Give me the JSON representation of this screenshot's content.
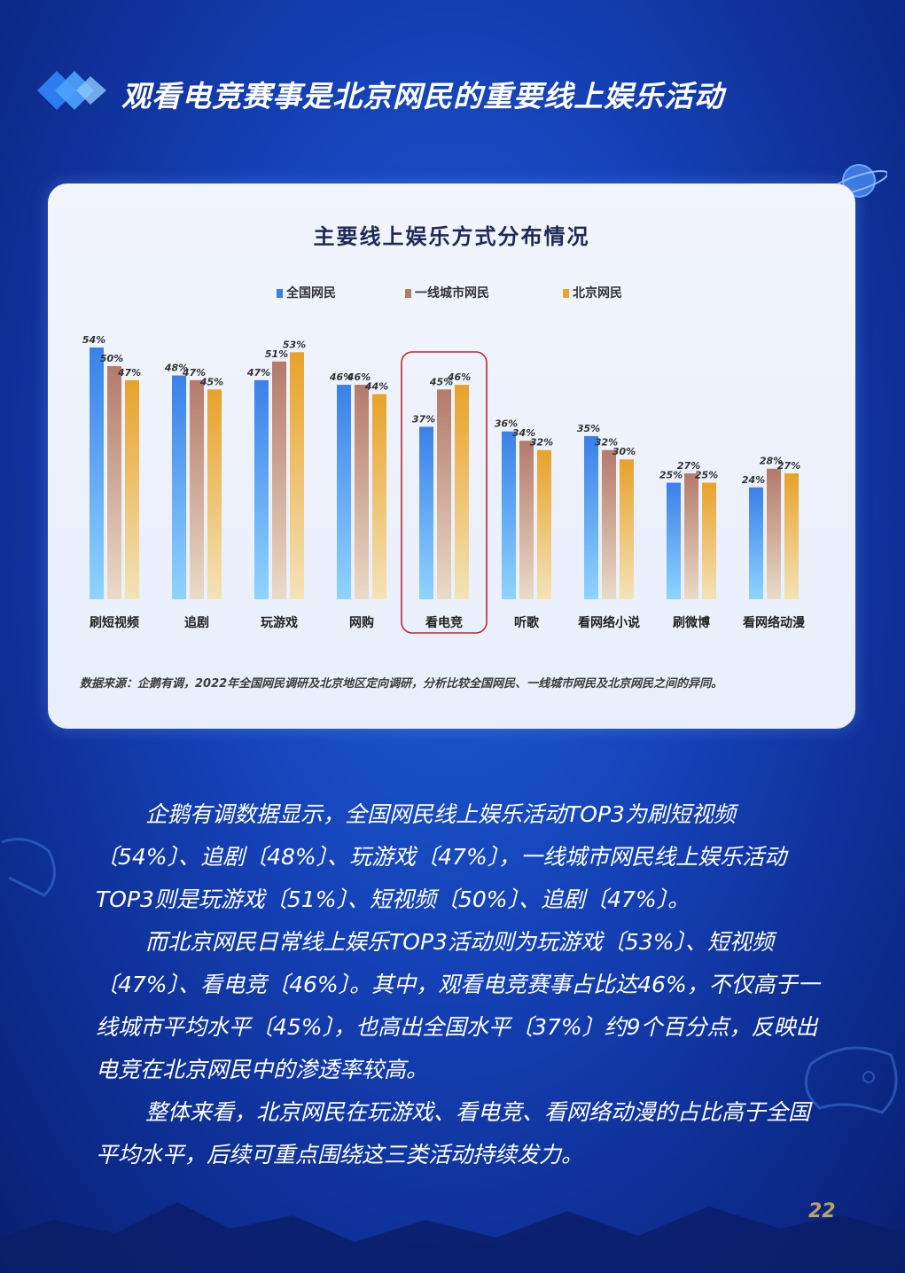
{
  "header": {
    "title": "观看电竞赛事是北京网民的重要线上娱乐活动",
    "logo_icon": "diamond-logo-icon"
  },
  "chart_card": {
    "source_note": "数据来源：企鹅有调，2022年全国网民调研及北京地区定向调研，分析比较全国网民、一线城市网民及北京网民之间的异同。"
  },
  "chart_data": {
    "type": "bar",
    "title": "主要线上娱乐方式分布情况",
    "categories": [
      "刷短视频",
      "追剧",
      "玩游戏",
      "网购",
      "看电竞",
      "听歌",
      "看网络小说",
      "刷微博",
      "看网络动漫"
    ],
    "series": [
      {
        "name": "全国网民",
        "values": [
          54,
          48,
          47,
          46,
          37,
          36,
          35,
          25,
          24
        ],
        "color": "#3a80e8"
      },
      {
        "name": "一线城市网民",
        "values": [
          50,
          47,
          51,
          46,
          45,
          34,
          32,
          27,
          28
        ],
        "color": "#b47a6a"
      },
      {
        "name": "北京网民",
        "values": [
          47,
          45,
          53,
          44,
          46,
          32,
          30,
          25,
          27
        ],
        "color": "#e8a22a"
      }
    ],
    "value_suffix": "%",
    "ylim": [
      0,
      54
    ],
    "highlight_category": "看电竞",
    "highlight_color": "#c0272d",
    "legend_position": "top",
    "grid": false
  },
  "body": {
    "paragraphs": [
      "企鹅有调数据显示，全国网民线上娱乐活动TOP3为刷短视频〔54%〕、追剧〔48%〕、玩游戏〔47%〕，一线城市网民线上娱乐活动TOP3则是玩游戏〔51%〕、短视频〔50%〕、追剧〔47%〕。",
      "而北京网民日常线上娱乐TOP3活动则为玩游戏〔53%〕、短视频〔47%〕、看电竞〔46%〕。其中，观看电竞赛事占比达46%，不仅高于一线城市平均水平〔45%〕，也高出全国水平〔37%〕约9个百分点，反映出电竞在北京网民中的渗透率较高。",
      "整体来看，北京网民在玩游戏、看电竞、看网络动漫的占比高于全国平均水平，后续可重点围绕这三类活动持续发力。"
    ]
  },
  "footer": {
    "page_number": "22"
  }
}
